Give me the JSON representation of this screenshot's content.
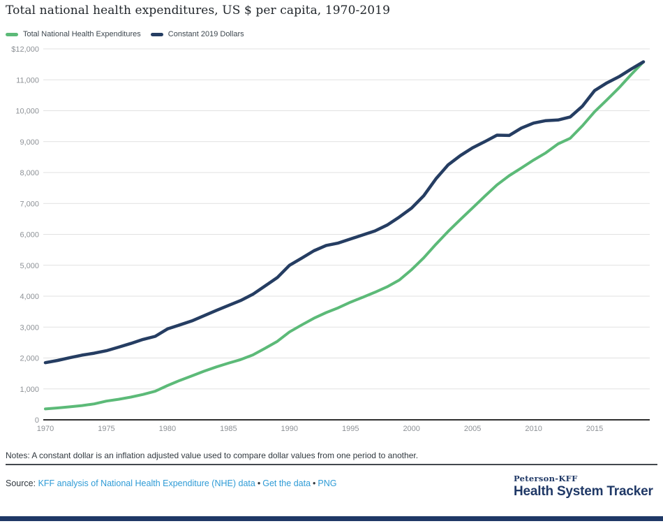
{
  "title": "Total national health expenditures, US $ per capita, 1970-2019",
  "notes": "Notes: A constant dollar is an inflation adjusted value used to compare dollar values from one period to another.",
  "source": {
    "prefix": "Source: ",
    "link_analysis": "KFF analysis of National Health Expenditure (NHE) data",
    "sep1": "•",
    "link_get_data": "Get the data",
    "sep2": "•",
    "link_png": "PNG"
  },
  "branding": {
    "org": "Peterson-KFF",
    "name": "Health System Tracker",
    "navy": "#1f3866"
  },
  "colors": {
    "green_series": "#5cba78",
    "navy_series": "#253d62",
    "link_blue": "#2e9bd6",
    "gridline": "#e1e1e1",
    "tick_text": "#8d9196"
  },
  "chart_data": {
    "type": "line",
    "title": "Total national health expenditures, US $ per capita, 1970-2019",
    "xlabel": "",
    "ylabel": "US $ per capita",
    "xlim": [
      1970,
      2019
    ],
    "ylim": [
      0,
      12000
    ],
    "grid": true,
    "legend_position": "top-left",
    "xticks": [
      1970,
      1975,
      1980,
      1985,
      1990,
      1995,
      2000,
      2005,
      2010,
      2015
    ],
    "yticks": [
      {
        "value": 12000,
        "label": "$12,000"
      },
      {
        "value": 11000,
        "label": "11,000"
      },
      {
        "value": 10000,
        "label": "10,000"
      },
      {
        "value": 9000,
        "label": "9,000"
      },
      {
        "value": 8000,
        "label": "8,000"
      },
      {
        "value": 7000,
        "label": "7,000"
      },
      {
        "value": 6000,
        "label": "6,000"
      },
      {
        "value": 5000,
        "label": "5,000"
      },
      {
        "value": 4000,
        "label": "4,000"
      },
      {
        "value": 3000,
        "label": "3,000"
      },
      {
        "value": 2000,
        "label": "2,000"
      },
      {
        "value": 1000,
        "label": "1,000"
      },
      {
        "value": 0,
        "label": "0"
      }
    ],
    "x": [
      1970,
      1971,
      1972,
      1973,
      1974,
      1975,
      1976,
      1977,
      1978,
      1979,
      1980,
      1981,
      1982,
      1983,
      1984,
      1985,
      1986,
      1987,
      1988,
      1989,
      1990,
      1991,
      1992,
      1993,
      1994,
      1995,
      1996,
      1997,
      1998,
      1999,
      2000,
      2001,
      2002,
      2003,
      2004,
      2005,
      2006,
      2007,
      2008,
      2009,
      2010,
      2011,
      2012,
      2013,
      2014,
      2015,
      2016,
      2017,
      2018,
      2019
    ],
    "series": [
      {
        "name": "Total National Health Expenditures",
        "color": "#5cba78",
        "stroke_width": 4,
        "values": [
          353,
          384,
          421,
          462,
          515,
          605,
          665,
          735,
          820,
          925,
          1108,
          1273,
          1421,
          1572,
          1711,
          1833,
          1947,
          2099,
          2314,
          2537,
          2843,
          3070,
          3287,
          3468,
          3625,
          3806,
          3964,
          4127,
          4302,
          4522,
          4857,
          5240,
          5682,
          6098,
          6481,
          6855,
          7233,
          7601,
          7898,
          8149,
          8404,
          8638,
          8927,
          9110,
          9515,
          9968,
          10348,
          10742,
          11172,
          11582
        ]
      },
      {
        "name": "Constant 2019 Dollars",
        "color": "#253d62",
        "stroke_width": 4.5,
        "values": [
          1848,
          1920,
          2010,
          2092,
          2156,
          2234,
          2350,
          2470,
          2600,
          2700,
          2940,
          3070,
          3200,
          3370,
          3540,
          3700,
          3860,
          4060,
          4330,
          4600,
          5000,
          5230,
          5470,
          5640,
          5720,
          5850,
          5980,
          6110,
          6300,
          6560,
          6850,
          7250,
          7800,
          8250,
          8550,
          8800,
          9000,
          9210,
          9200,
          9440,
          9600,
          9680,
          9700,
          9800,
          10150,
          10650,
          10900,
          11100,
          11350,
          11582
        ]
      }
    ]
  }
}
